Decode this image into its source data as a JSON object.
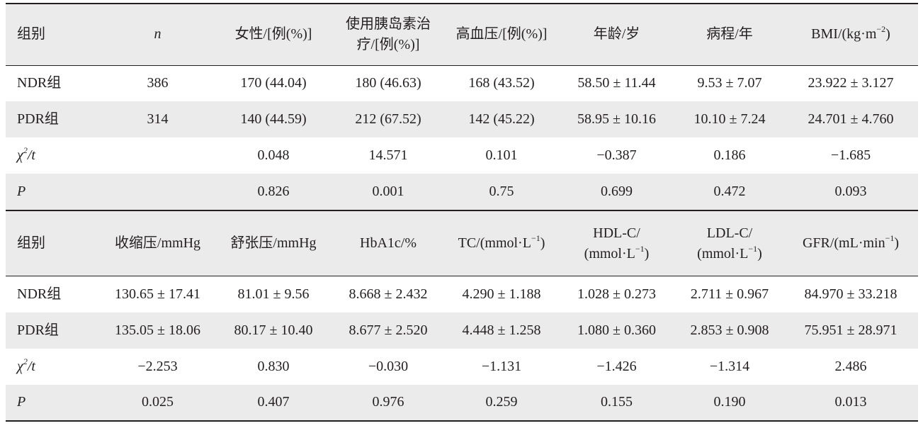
{
  "table1": {
    "headers": [
      "组别",
      "n",
      "女性/[例(%)]",
      "使用胰岛素治疗/[例(%)]",
      "高血压/[例(%)]",
      "年龄/岁",
      "病程/年",
      "BMI/(kg·m",
      "−2",
      ")"
    ],
    "rows": [
      [
        "NDR组",
        "386",
        "170 (44.04)",
        "180 (46.63)",
        "168 (43.52)",
        "58.50 ± 11.44",
        "9.53 ± 7.07",
        "23.922 ± 3.127"
      ],
      [
        "PDR组",
        "314",
        "140 (44.59)",
        "212 (67.52)",
        "142 (45.22)",
        "58.95 ± 10.16",
        "10.10 ± 7.24",
        "24.701 ± 4.760"
      ],
      [
        "χ",
        "2",
        "/t",
        "",
        "0.048",
        "14.571",
        "0.101",
        "−0.387",
        "0.186",
        "−1.685"
      ],
      [
        "P",
        "",
        "0.826",
        "0.001",
        "0.75",
        "0.699",
        "0.472",
        "0.093"
      ]
    ]
  },
  "table2": {
    "headers": [
      "组别",
      "收缩压/mmHg",
      "舒张压/mmHg",
      "HbA1c/%",
      "TC/(mmol·L",
      "−1",
      ")",
      "HDL-C/",
      "(mmol·L",
      "−1",
      ")",
      "LDL-C/",
      "(mmol·L",
      "−1",
      ")",
      "GFR/(mL·min",
      "−1",
      ")"
    ],
    "rows": [
      [
        "NDR组",
        "130.65 ± 17.41",
        "81.01 ± 9.56",
        "8.668 ± 2.432",
        "4.290 ± 1.188",
        "1.028 ± 0.273",
        "2.711 ± 0.967",
        "84.970 ± 33.218"
      ],
      [
        "PDR组",
        "135.05 ± 18.06",
        "80.17 ± 10.40",
        "8.677 ± 2.520",
        "4.448 ± 1.258",
        "1.080 ± 0.360",
        "2.853 ± 0.908",
        "75.951 ± 28.971"
      ],
      [
        "χ",
        "2",
        "/t",
        "−2.253",
        "0.830",
        "−0.030",
        "−1.131",
        "−1.426",
        "−1.314",
        "2.486"
      ],
      [
        "P",
        "0.025",
        "0.407",
        "0.976",
        "0.259",
        "0.155",
        "0.190",
        "0.013"
      ]
    ]
  }
}
